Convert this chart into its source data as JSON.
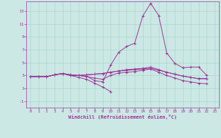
{
  "background_color": "#cbe8e4",
  "grid_color": "#aad4ce",
  "line_color": "#993399",
  "xlabel": "Windchill (Refroidissement éolien,°C)",
  "xlim": [
    -0.5,
    23.5
  ],
  "ylim": [
    -2.0,
    14.5
  ],
  "yticks": [
    -1,
    1,
    3,
    5,
    7,
    9,
    11,
    13
  ],
  "xticks": [
    0,
    1,
    2,
    3,
    4,
    5,
    6,
    7,
    8,
    9,
    10,
    11,
    12,
    13,
    14,
    15,
    16,
    17,
    18,
    19,
    20,
    21,
    22,
    23
  ],
  "series": [
    [
      2.8,
      2.8,
      2.8,
      3.1,
      3.3,
      3.0,
      3.0,
      2.9,
      2.2,
      2.0,
      4.6,
      6.6,
      7.5,
      8.0,
      12.2,
      14.2,
      12.3,
      6.5,
      4.9,
      4.2,
      4.3,
      4.3,
      3.0,
      null
    ],
    [
      2.8,
      2.8,
      2.8,
      3.1,
      3.3,
      3.1,
      3.0,
      3.1,
      3.2,
      3.3,
      3.5,
      3.7,
      3.9,
      4.0,
      4.1,
      4.3,
      3.9,
      3.5,
      3.2,
      2.9,
      2.7,
      2.5,
      2.5,
      null
    ],
    [
      2.8,
      2.8,
      2.8,
      3.1,
      3.3,
      3.1,
      3.0,
      3.1,
      3.2,
      3.3,
      3.5,
      3.7,
      3.8,
      3.9,
      4.0,
      4.1,
      3.8,
      3.5,
      3.2,
      2.9,
      2.7,
      2.5,
      2.5,
      null
    ],
    [
      2.8,
      2.8,
      2.8,
      3.1,
      3.3,
      3.0,
      3.0,
      2.8,
      2.6,
      2.4,
      3.0,
      3.4,
      3.5,
      3.6,
      3.8,
      4.0,
      3.5,
      3.0,
      2.6,
      2.2,
      2.0,
      1.8,
      1.7,
      null
    ],
    [
      2.8,
      2.8,
      2.8,
      3.1,
      3.3,
      3.0,
      2.7,
      2.4,
      1.8,
      1.2,
      0.5,
      null,
      null,
      null,
      null,
      null,
      null,
      null,
      null,
      null,
      null,
      null,
      null,
      null
    ]
  ]
}
